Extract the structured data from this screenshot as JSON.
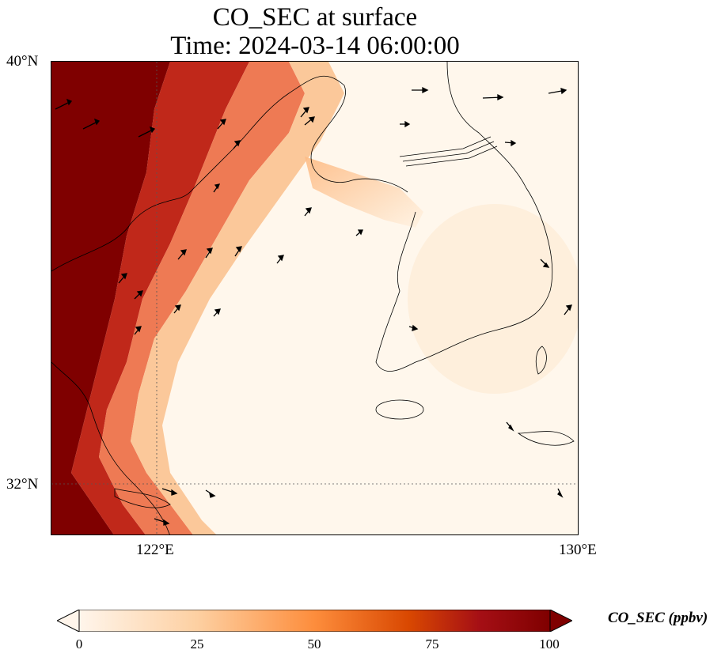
{
  "title": {
    "line1": "CO_SEC at surface",
    "line2": "Time: 2024-03-14 06:00:00"
  },
  "axes": {
    "lat_labels": [
      "40°N",
      "32°N"
    ],
    "lon_labels": [
      "122°E",
      "130°E"
    ],
    "extent": {
      "lon_min": 120,
      "lon_max": 130,
      "lat_min": 31,
      "lat_max": 40
    }
  },
  "colorbar": {
    "label": "CO_SEC (ppbv)",
    "ticks": [
      "0",
      "25",
      "50",
      "75",
      "100"
    ],
    "min": 0,
    "max": 100,
    "colormap": [
      "#fff5eb",
      "#fdd0a2",
      "#fd8d3c",
      "#d94801",
      "#a50f15",
      "#7f0000"
    ],
    "extend": "both"
  },
  "map": {
    "gridlines": "dotted",
    "colormap_name": "OrRd",
    "features": [
      "coastline",
      "wind-vectors",
      "concentration-field"
    ]
  }
}
